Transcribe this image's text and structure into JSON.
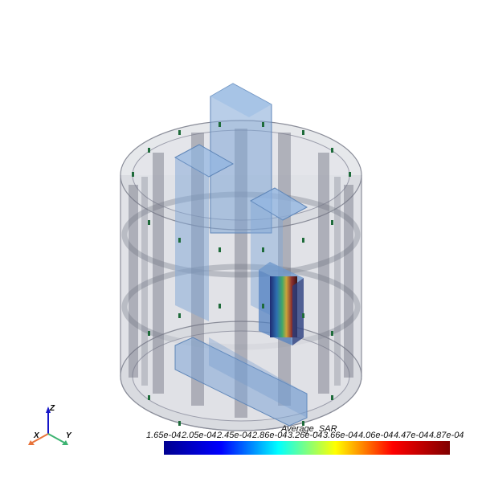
{
  "legend": {
    "title": "Average_SAR",
    "ticks": [
      "1.65e-04",
      "2.05e-04",
      "2.45e-04",
      "2.86e-04",
      "3.26e-04",
      "3.66e-04",
      "4.06e-04",
      "4.47e-04",
      "4.87e-04"
    ],
    "colormap": [
      "#00008f",
      "#0000ff",
      "#00ffff",
      "#ffff00",
      "#ff0000",
      "#800000"
    ]
  },
  "axes_widget": {
    "x": "X",
    "y": "Y",
    "z": "Z",
    "x_color": "#e8743b",
    "y_color": "#3cb371",
    "z_color": "#1515c8"
  },
  "scene": {
    "shell_color": "#8a8d99",
    "rib_color": "#6e7080",
    "phantom_color": "#7fa6d6",
    "marker_color": "#1e6b3a"
  }
}
